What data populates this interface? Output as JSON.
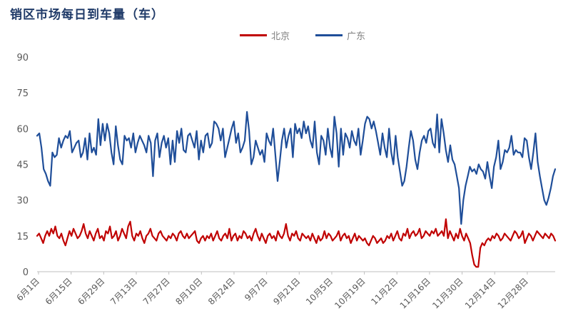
{
  "chart_data": {
    "type": "line",
    "title": "销区市场每日到车量（车）",
    "ylim": [
      0,
      90
    ],
    "yticks": [
      0,
      15,
      30,
      45,
      60,
      75,
      90
    ],
    "grid": false,
    "legend_position": "top-center",
    "x_tick_labels": [
      "6月1日",
      "6月15日",
      "6月29日",
      "7月13日",
      "7月27日",
      "8月10日",
      "8月24日",
      "9月7日",
      "9月21日",
      "10月5日",
      "10月19日",
      "11月2日",
      "11月16日",
      "11月30日",
      "12月14日",
      "12月28日"
    ],
    "series": [
      {
        "name": "北京",
        "color": "#c00000",
        "values": [
          15,
          16,
          14,
          12,
          15,
          17,
          15,
          18,
          16,
          19,
          15,
          14,
          16,
          13,
          11,
          14,
          17,
          15,
          18,
          16,
          14,
          15,
          17,
          20,
          16,
          14,
          17,
          15,
          13,
          16,
          18,
          14,
          15,
          13,
          17,
          16,
          19,
          14,
          15,
          17,
          13,
          15,
          18,
          16,
          14,
          19,
          21,
          15,
          13,
          16,
          15,
          17,
          14,
          12,
          15,
          16,
          18,
          15,
          14,
          13,
          16,
          17,
          15,
          14,
          13,
          15,
          14,
          16,
          15,
          13,
          16,
          17,
          15,
          14,
          16,
          14,
          15,
          16,
          17,
          13,
          12,
          14,
          15,
          13,
          15,
          14,
          16,
          13,
          15,
          17,
          14,
          13,
          15,
          16,
          14,
          18,
          13,
          15,
          16,
          13,
          15,
          14,
          17,
          16,
          14,
          15,
          13,
          16,
          18,
          15,
          13,
          16,
          14,
          12,
          15,
          16,
          14,
          15,
          13,
          17,
          15,
          14,
          16,
          20,
          15,
          13,
          16,
          15,
          17,
          14,
          13,
          16,
          15,
          14,
          15,
          13,
          16,
          14,
          12,
          15,
          13,
          14,
          17,
          14,
          16,
          15,
          13,
          14,
          15,
          17,
          13,
          15,
          16,
          14,
          15,
          12,
          14,
          16,
          13,
          15,
          14,
          13,
          14,
          12,
          11,
          13,
          15,
          14,
          12,
          13,
          14,
          12,
          13,
          15,
          14,
          16,
          13,
          15,
          17,
          14,
          13,
          16,
          15,
          18,
          14,
          16,
          17,
          15,
          16,
          18,
          14,
          15,
          17,
          16,
          15,
          17,
          16,
          18,
          15,
          16,
          17,
          15,
          22,
          14,
          17,
          15,
          13,
          16,
          14,
          18,
          15,
          13,
          16,
          14,
          12,
          7,
          3,
          2,
          2,
          10,
          12,
          11,
          13,
          14,
          13,
          15,
          14,
          16,
          15,
          13,
          14,
          16,
          15,
          14,
          13,
          15,
          17,
          16,
          14,
          15,
          17,
          12,
          14,
          16,
          15,
          13,
          15,
          17,
          16,
          15,
          14,
          16,
          15,
          14,
          16,
          15,
          13
        ]
      },
      {
        "name": "广东",
        "color": "#1f4e99",
        "values": [
          57,
          58,
          52,
          43,
          41,
          38,
          36,
          50,
          48,
          49,
          56,
          52,
          55,
          57,
          56,
          59,
          50,
          52,
          54,
          55,
          48,
          50,
          56,
          47,
          58,
          50,
          52,
          49,
          64,
          53,
          62,
          55,
          62,
          58,
          50,
          45,
          61,
          53,
          47,
          45,
          57,
          55,
          56,
          52,
          58,
          50,
          54,
          57,
          55,
          53,
          50,
          57,
          54,
          40,
          55,
          58,
          48,
          54,
          57,
          52,
          56,
          45,
          55,
          46,
          59,
          54,
          60,
          51,
          50,
          57,
          58,
          55,
          52,
          59,
          47,
          55,
          50,
          57,
          58,
          52,
          54,
          63,
          62,
          60,
          55,
          60,
          48,
          52,
          56,
          60,
          63,
          54,
          58,
          50,
          52,
          55,
          67,
          59,
          45,
          48,
          55,
          52,
          49,
          51,
          46,
          58,
          55,
          53,
          60,
          49,
          38,
          46,
          55,
          60,
          52,
          57,
          60,
          48,
          62,
          58,
          60,
          56,
          63,
          58,
          61,
          55,
          52,
          63,
          50,
          45,
          57,
          55,
          49,
          60,
          52,
          48,
          65,
          58,
          44,
          60,
          49,
          58,
          56,
          52,
          59,
          55,
          53,
          60,
          49,
          55,
          62,
          65,
          64,
          60,
          63,
          59,
          54,
          49,
          58,
          52,
          48,
          60,
          50,
          45,
          57,
          48,
          42,
          36,
          38,
          44,
          52,
          59,
          55,
          47,
          43,
          50,
          55,
          57,
          54,
          59,
          60,
          54,
          52,
          66,
          50,
          64,
          58,
          51,
          46,
          53,
          47,
          45,
          40,
          35,
          20,
          30,
          36,
          40,
          44,
          42,
          43,
          41,
          45,
          43,
          42,
          39,
          46,
          40,
          35,
          44,
          48,
          55,
          43,
          46,
          51,
          50,
          52,
          57,
          49,
          51,
          50,
          50,
          48,
          56,
          55,
          48,
          43,
          50,
          58,
          46,
          40,
          35,
          30,
          28,
          31,
          35,
          40,
          43
        ]
      }
    ]
  }
}
